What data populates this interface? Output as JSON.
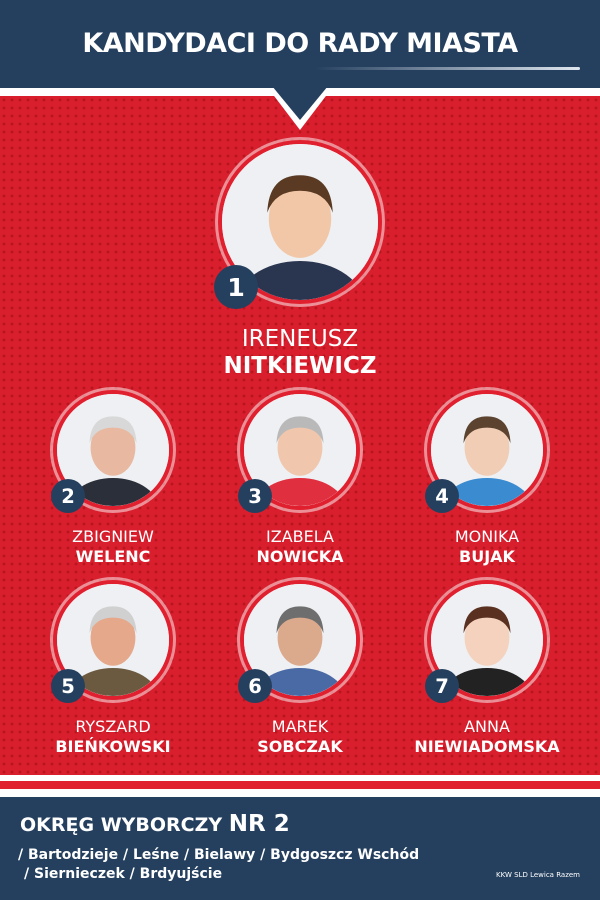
{
  "header": {
    "title": "KANDYDACI DO RADY MIASTA"
  },
  "colors": {
    "navy": "#25405f",
    "red": "#d91f2e",
    "white": "#ffffff"
  },
  "lead": {
    "number": "1",
    "first": "IRENEUSZ",
    "last": "NITKIEWICZ"
  },
  "candidates": [
    {
      "number": "2",
      "first": "ZBIGNIEW",
      "last": "WELENC"
    },
    {
      "number": "3",
      "first": "IZABELA",
      "last": "NOWICKA"
    },
    {
      "number": "4",
      "first": "MONIKA",
      "last": "BUJAK"
    },
    {
      "number": "5",
      "first": "RYSZARD",
      "last": "BIEŃKOWSKI"
    },
    {
      "number": "6",
      "first": "MAREK",
      "last": "SOBCZAK"
    },
    {
      "number": "7",
      "first": "ANNA",
      "last": "NIEWIADOMSKA"
    }
  ],
  "footer": {
    "title": "OKRĘG WYBORCZY",
    "nr": "NR 2",
    "line1": "/ Bartodzieje / Leśne / Bielawy / Bydgoszcz Wschód",
    "line2": "/ Siernieczek / Brdyujście",
    "credit": "KKW SLD Lewica Razem"
  }
}
